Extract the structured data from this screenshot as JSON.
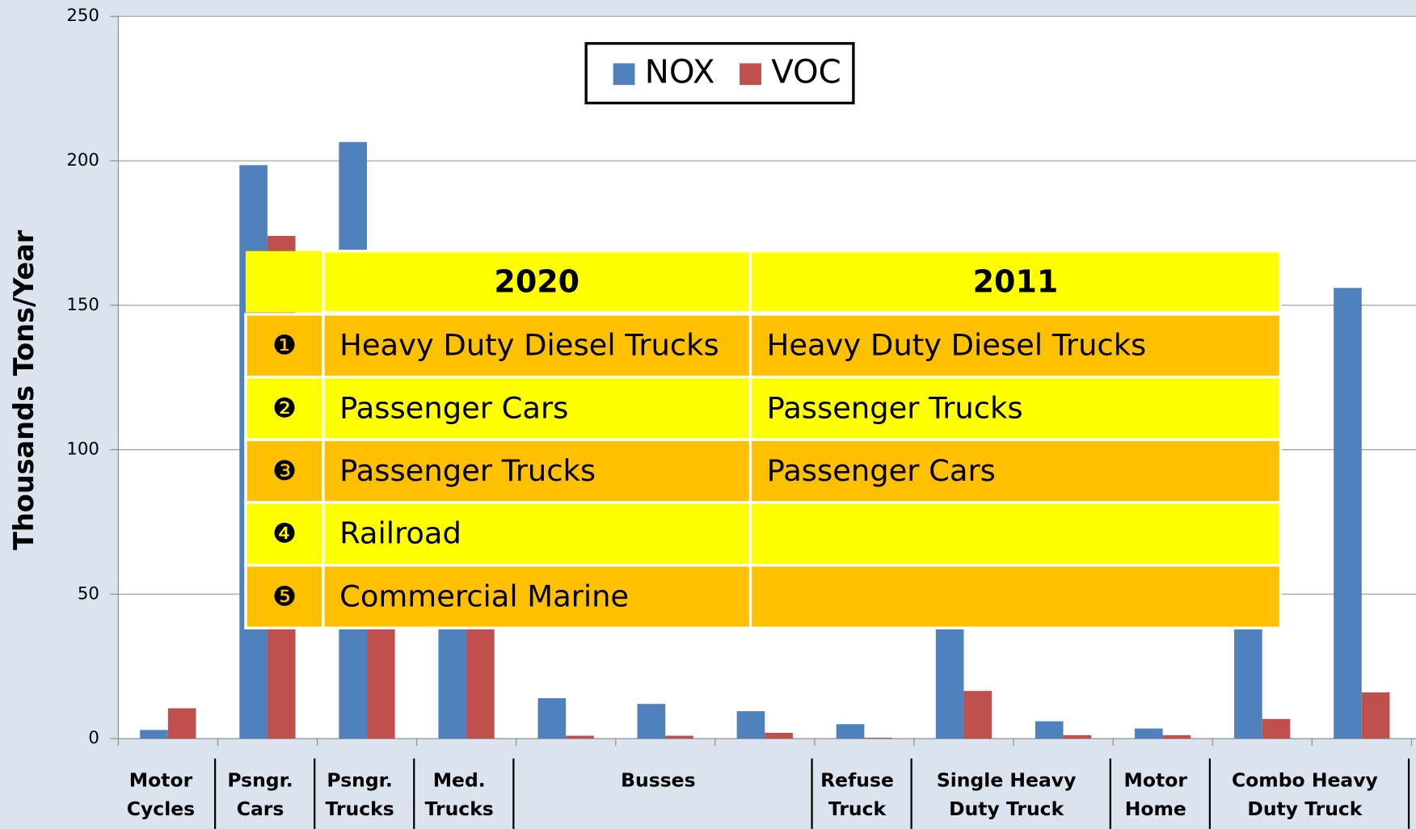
{
  "chart_data": {
    "type": "bar",
    "y_label": "Thousands Tons/Year",
    "categories": [
      "Motor Cycles",
      "Psngr. Cars",
      "Psngr. Trucks",
      "Med. Trucks",
      "Busses",
      null,
      null,
      "Refuse Truck",
      "Single Heavy Duty Truck",
      null,
      "Motor Home",
      "Combo Heavy Duty Truck",
      null
    ],
    "series": [
      {
        "name": "NOX",
        "color": "#4f81bd",
        "values": [
          3,
          198.5,
          206.5,
          45,
          14,
          12,
          9.5,
          5,
          45,
          6,
          3.5,
          45,
          156
        ]
      },
      {
        "name": "VOC",
        "color": "#c0504d",
        "values": [
          10.5,
          174,
          60,
          42,
          1,
          1,
          2,
          0.3,
          16.5,
          1.2,
          1.2,
          6.8,
          16
        ]
      }
    ],
    "ylim": [
      0,
      250
    ],
    "yticks": [
      0,
      50,
      100,
      150,
      200,
      250
    ],
    "grid": true,
    "legend": "top"
  },
  "table": {
    "header": [
      "2020",
      "2011"
    ],
    "rows": [
      [
        "❶",
        "Heavy Duty Diesel Trucks",
        "Heavy Duty Diesel Trucks"
      ],
      [
        "❷",
        "Passenger Cars",
        "Passenger Trucks"
      ],
      [
        "❸",
        "Passenger Trucks",
        "Passenger Cars"
      ],
      [
        "❹",
        "Railroad"
      ],
      [
        "❺",
        "Commercial Marine"
      ]
    ]
  }
}
